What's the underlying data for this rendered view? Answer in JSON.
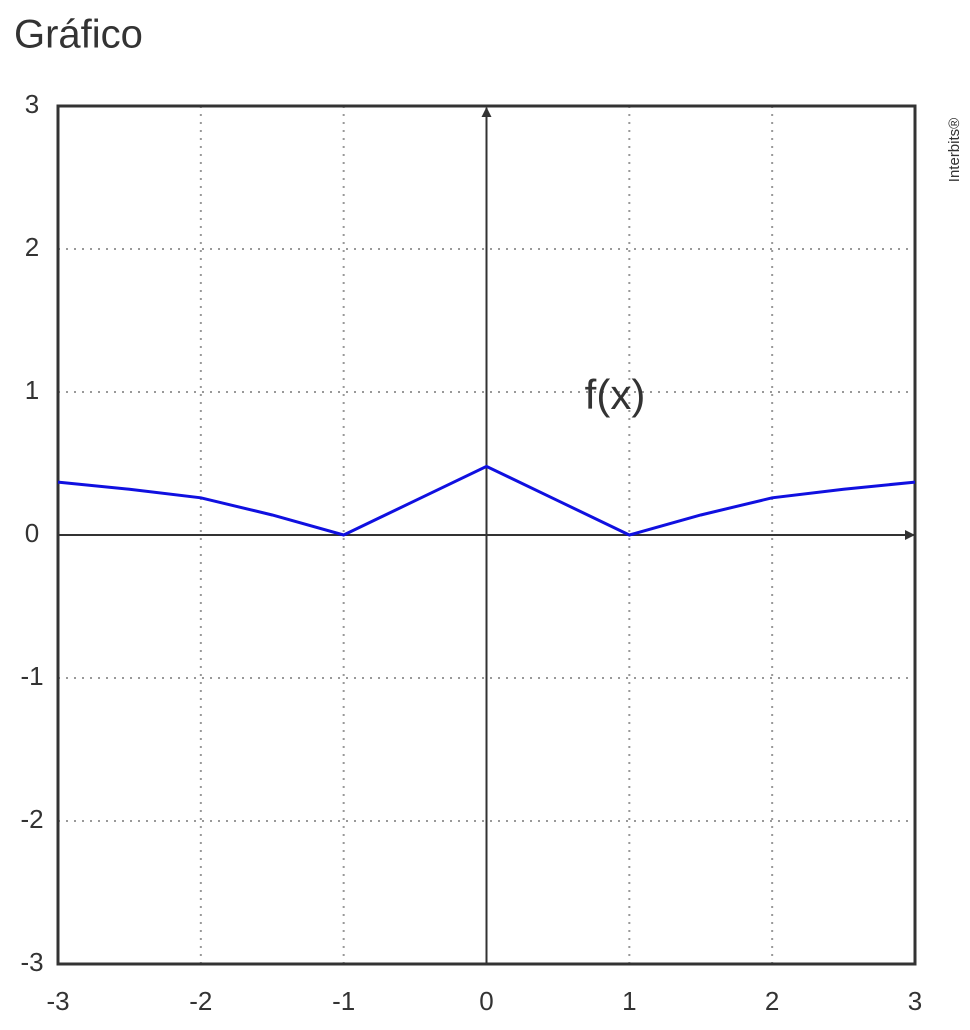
{
  "chart_data": {
    "type": "line",
    "title": "Gráfico",
    "watermark": "Interbits®",
    "x": [
      -3,
      -2.5,
      -2,
      -1.5,
      -1,
      -0.5,
      0,
      0.5,
      1,
      1.5,
      2,
      2.5,
      3
    ],
    "series": [
      {
        "name": "f(x)",
        "color": "#1010e0",
        "values": [
          0.37,
          0.32,
          0.26,
          0.14,
          0,
          0.24,
          0.48,
          0.24,
          0,
          0.14,
          0.26,
          0.32,
          0.37
        ]
      }
    ],
    "xlim": [
      -3,
      3
    ],
    "ylim": [
      -3,
      3
    ],
    "xticks": [
      -3,
      -2,
      -1,
      0,
      1,
      2,
      3
    ],
    "yticks": [
      -3,
      -2,
      -1,
      0,
      1,
      2,
      3
    ],
    "grid": true
  }
}
